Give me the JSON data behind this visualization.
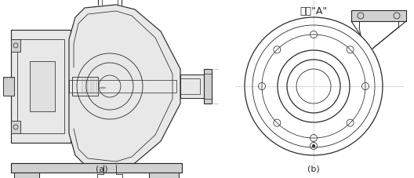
{
  "fig_width": 5.28,
  "fig_height": 2.27,
  "dpi": 100,
  "bg_color": "#ffffff",
  "lc": "#2a2a2a",
  "clc": "#aaaaaa",
  "g1": "#d0d0d0",
  "g2": "#e8e8e8",
  "title_b": "矢視\"A\"",
  "label_a": "(a)",
  "label_b": "(b)",
  "fs_title": 9,
  "fs_label": 8
}
